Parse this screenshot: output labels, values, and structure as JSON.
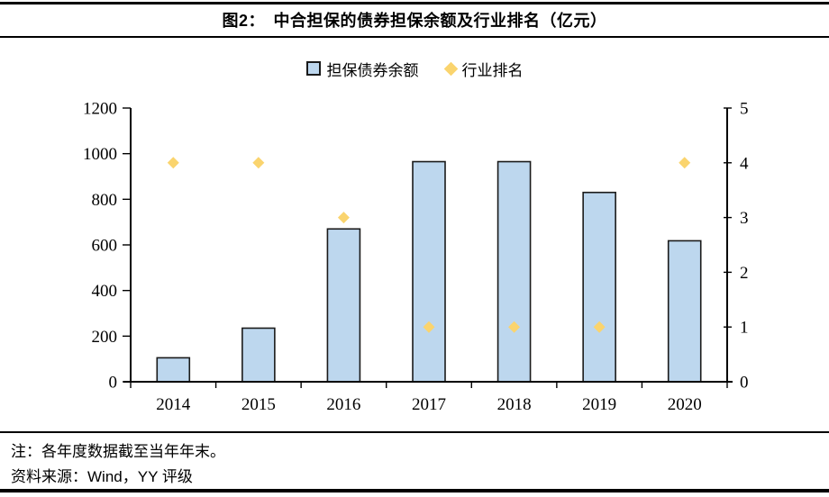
{
  "figure": {
    "title": "图2：　中合担保的债券担保余额及行业排名（亿元）",
    "legend": {
      "items": [
        {
          "label": "担保债券余额",
          "icon": "legend-bar-swatch-icon"
        },
        {
          "label": "行业排名",
          "icon": "legend-diamond-icon"
        }
      ]
    },
    "notes": {
      "note": "注：各年度数据截至当年年末。",
      "source": "资料来源：Wind，YY 评级"
    }
  },
  "colors": {
    "bar_fill": "#BDD7EE",
    "bar_border": "#1A1A1A",
    "marker_fill": "#FAD46E",
    "axis_line": "#000000",
    "rule": "#000000",
    "text": "#000000"
  },
  "chart_data": {
    "type": "bar",
    "title": "图2：　中合担保的债券担保余额及行业排名（亿元）",
    "categories": [
      "2014",
      "2015",
      "2016",
      "2017",
      "2018",
      "2019",
      "2020"
    ],
    "series": [
      {
        "name": "担保债券余额",
        "type": "bar",
        "axis": "left",
        "values": [
          105,
          235,
          670,
          965,
          965,
          830,
          618
        ]
      },
      {
        "name": "行业排名",
        "type": "scatter",
        "marker": "diamond",
        "axis": "right",
        "values": [
          4,
          4,
          3,
          1,
          1,
          1,
          4
        ]
      }
    ],
    "left_axis": {
      "min": 0,
      "max": 1200,
      "step": 200,
      "tick_labels": [
        "0",
        "200",
        "400",
        "600",
        "800",
        "1000",
        "1200"
      ]
    },
    "right_axis": {
      "min": 0,
      "max": 5,
      "step": 1,
      "tick_labels": [
        "0",
        "1",
        "2",
        "3",
        "4",
        "5"
      ]
    },
    "grid": false,
    "legend_position": "top"
  }
}
